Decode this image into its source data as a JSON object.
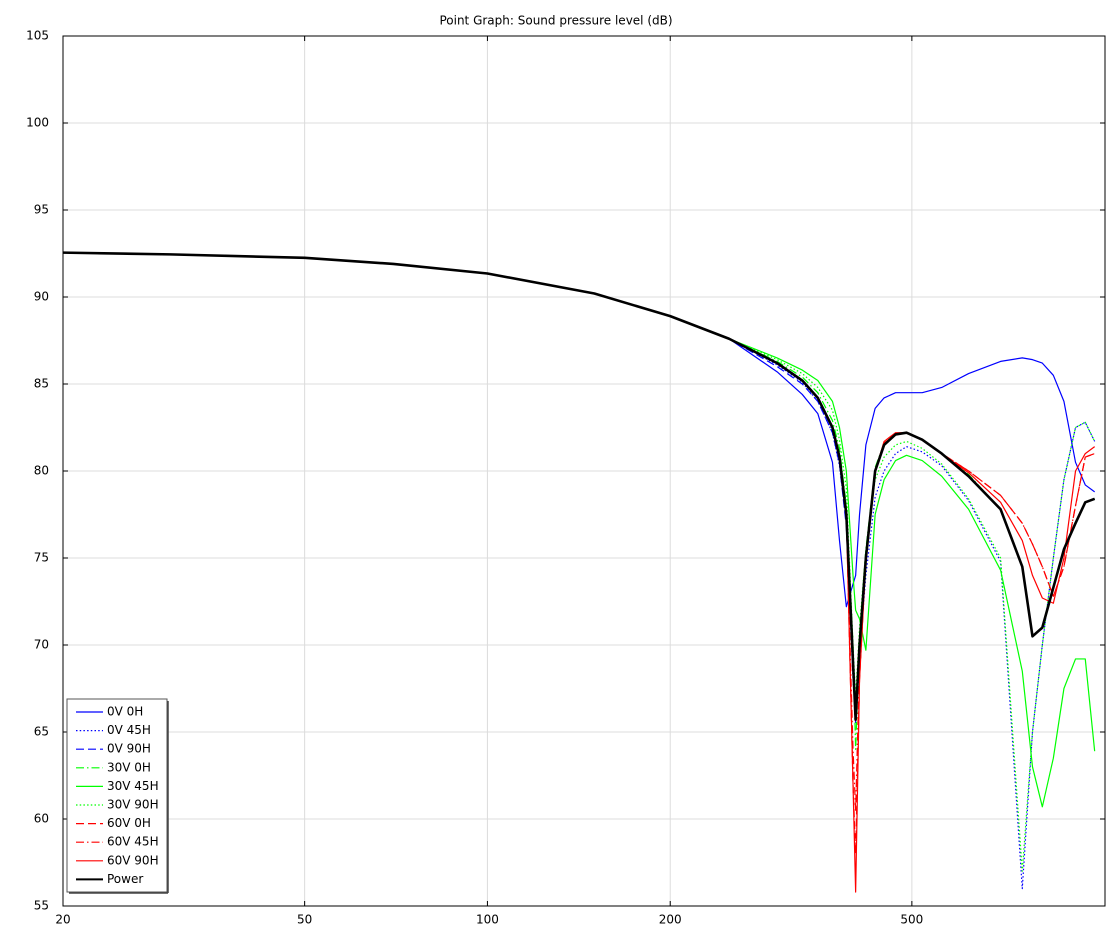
{
  "chart_data": {
    "type": "line",
    "title": "Point Graph: Sound pressure level (dB)",
    "x": [
      20,
      30,
      50,
      70,
      100,
      150,
      200,
      250,
      300,
      330,
      350,
      370,
      380,
      390,
      400,
      404,
      410,
      420,
      435,
      450,
      470,
      490,
      520,
      560,
      620,
      700,
      760,
      790,
      820,
      855,
      890,
      930,
      965,
      1000
    ],
    "xscale": "log",
    "xlim": [
      20,
      1040
    ],
    "xticks": [
      20,
      50,
      100,
      200,
      500
    ],
    "ylim": [
      55,
      105
    ],
    "yticks": [
      55,
      60,
      65,
      70,
      75,
      80,
      85,
      90,
      95,
      100,
      105
    ],
    "grid": true,
    "legend": "lower left",
    "series": [
      {
        "name": "0V 0H",
        "color": "#0000ff",
        "dash": "solid",
        "width": 1.2,
        "values": [
          92.55,
          92.45,
          92.25,
          91.9,
          91.35,
          90.2,
          88.9,
          87.6,
          85.7,
          84.4,
          83.3,
          80.5,
          76,
          72.2,
          73.5,
          74,
          77.5,
          81.5,
          83.6,
          84.2,
          84.5,
          84.5,
          84.5,
          84.8,
          85.6,
          86.3,
          86.5,
          86.4,
          86.2,
          85.5,
          84,
          80.5,
          79.2,
          78.8
        ]
      },
      {
        "name": "0V 45H",
        "color": "#0000ff",
        "dash": "dotted",
        "width": 1.2,
        "values": [
          92.55,
          92.45,
          92.25,
          91.9,
          91.35,
          90.2,
          88.9,
          87.6,
          86.1,
          85.1,
          84,
          82.2,
          80.3,
          77,
          68,
          66,
          69.5,
          74,
          78.5,
          80,
          81,
          81.4,
          81.1,
          80.3,
          78.3,
          74.8,
          56,
          65,
          70,
          75,
          79.5,
          82.5,
          82.8,
          81.7
        ]
      },
      {
        "name": "0V 90H",
        "color": "#0000ff",
        "dash": "dashed",
        "width": 1.2,
        "values": [
          92.55,
          92.45,
          92.25,
          91.9,
          91.35,
          90.2,
          88.9,
          87.6,
          86,
          85,
          84,
          82.2,
          80.4,
          76.8,
          68.5,
          65.5,
          70,
          75,
          80,
          81.5,
          82.1,
          82.2,
          81.8,
          81,
          79.7,
          77.8,
          74.5,
          70.5,
          71,
          73.3,
          75.5,
          77,
          78.2,
          78.4
        ]
      },
      {
        "name": "30V 0H",
        "color": "#00ff00",
        "dash": "dashdot",
        "width": 1.2,
        "values": [
          92.55,
          92.45,
          92.25,
          91.9,
          91.35,
          90.2,
          88.9,
          87.6,
          86.3,
          85.4,
          84.5,
          82.9,
          81.3,
          78,
          70,
          64,
          70.5,
          75.5,
          80.2,
          81.6,
          82.1,
          82.2,
          81.8,
          81,
          79.8,
          77.8,
          74.5,
          70.5,
          71,
          73.3,
          75.5,
          77,
          78.2,
          78.4
        ]
      },
      {
        "name": "30V 45H",
        "color": "#00ff00",
        "dash": "solid",
        "width": 1.2,
        "values": [
          92.55,
          92.45,
          92.25,
          91.9,
          91.35,
          90.2,
          88.9,
          87.6,
          86.5,
          85.8,
          85.2,
          84,
          82.5,
          80,
          74,
          72,
          71.5,
          69.7,
          77.5,
          79.5,
          80.6,
          80.9,
          80.6,
          79.7,
          77.8,
          74.3,
          68.5,
          63,
          60.7,
          63.5,
          67.5,
          69.2,
          69.2,
          63.9
        ]
      },
      {
        "name": "30V 90H",
        "color": "#00ff00",
        "dash": "dotted",
        "width": 1.2,
        "values": [
          92.55,
          92.45,
          92.25,
          91.9,
          91.35,
          90.2,
          88.9,
          87.6,
          86.4,
          85.6,
          84.8,
          83.5,
          81.8,
          79,
          70,
          67,
          71,
          75.5,
          79.5,
          80.8,
          81.5,
          81.7,
          81.3,
          80.4,
          78.4,
          75,
          57,
          65,
          70,
          75,
          79.5,
          82.5,
          82.8,
          81.7
        ]
      },
      {
        "name": "60V 0H",
        "color": "#ff0000",
        "dash": "dashed",
        "width": 1.2,
        "values": [
          92.55,
          92.45,
          92.25,
          91.9,
          91.35,
          90.2,
          88.9,
          87.6,
          86.2,
          85.2,
          84.2,
          82.5,
          80.8,
          77.5,
          62,
          58,
          68,
          75,
          80,
          81.6,
          82.1,
          82.2,
          81.8,
          81,
          80,
          78.6,
          77,
          75.8,
          74.5,
          72.8,
          74.5,
          78,
          80.8,
          81
        ]
      },
      {
        "name": "60V 45H",
        "color": "#ff0000",
        "dash": "dashdot",
        "width": 1.2,
        "values": [
          92.55,
          92.45,
          92.25,
          91.9,
          91.35,
          90.2,
          88.9,
          87.6,
          86.2,
          85.2,
          84.2,
          82.5,
          80.8,
          77.5,
          64,
          60.5,
          69,
          75,
          80,
          81.6,
          82.1,
          82.2,
          81.8,
          81,
          80,
          78.6,
          77,
          75.8,
          74.5,
          72.8,
          74.5,
          78,
          80.8,
          81
        ]
      },
      {
        "name": "60V 90H",
        "color": "#ff0000",
        "dash": "solid",
        "width": 1.2,
        "values": [
          92.55,
          92.45,
          92.25,
          91.9,
          91.35,
          90.2,
          88.9,
          87.6,
          86.2,
          85.2,
          84.2,
          82.5,
          80.8,
          77.5,
          62,
          55.8,
          68,
          75,
          80,
          81.7,
          82.2,
          82.2,
          81.8,
          81,
          79.9,
          78.2,
          76,
          74,
          72.7,
          72.4,
          75,
          80,
          81,
          81.4
        ]
      },
      {
        "name": "Power",
        "color": "#000000",
        "dash": "solid",
        "width": 2.6,
        "values": [
          92.55,
          92.45,
          92.25,
          91.9,
          91.35,
          90.2,
          88.9,
          87.6,
          86.2,
          85.2,
          84.2,
          82.5,
          80.8,
          77.5,
          69,
          65.7,
          70,
          75,
          80,
          81.5,
          82.1,
          82.2,
          81.8,
          81,
          79.7,
          77.8,
          74.5,
          70.5,
          71,
          73.3,
          75.5,
          77,
          78.2,
          78.4
        ]
      }
    ]
  }
}
